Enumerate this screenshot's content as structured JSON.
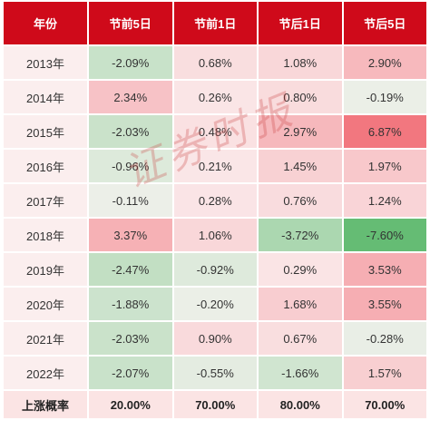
{
  "chart_data": {
    "type": "table",
    "headers": [
      "年份",
      "节前5日",
      "节前1日",
      "节后1日",
      "节后5日"
    ],
    "rows": [
      {
        "year": "2013年",
        "values": [
          -2.09,
          0.68,
          1.08,
          2.9
        ],
        "labels": [
          "-2.09%",
          "0.68%",
          "1.08%",
          "2.90%"
        ]
      },
      {
        "year": "2014年",
        "values": [
          2.34,
          0.26,
          0.8,
          -0.19
        ],
        "labels": [
          "2.34%",
          "0.26%",
          "0.80%",
          "-0.19%"
        ]
      },
      {
        "year": "2015年",
        "values": [
          -2.03,
          0.48,
          2.97,
          6.87
        ],
        "labels": [
          "-2.03%",
          "0.48%",
          "2.97%",
          "6.87%"
        ]
      },
      {
        "year": "2016年",
        "values": [
          -0.96,
          0.21,
          1.45,
          1.97
        ],
        "labels": [
          "-0.96%",
          "0.21%",
          "1.45%",
          "1.97%"
        ]
      },
      {
        "year": "2017年",
        "values": [
          -0.11,
          0.28,
          0.76,
          1.24
        ],
        "labels": [
          "-0.11%",
          "0.28%",
          "0.76%",
          "1.24%"
        ]
      },
      {
        "year": "2018年",
        "values": [
          3.37,
          1.06,
          -3.72,
          -7.6
        ],
        "labels": [
          "3.37%",
          "1.06%",
          "-3.72%",
          "-7.60%"
        ]
      },
      {
        "year": "2019年",
        "values": [
          -2.47,
          -0.92,
          0.29,
          3.53
        ],
        "labels": [
          "-2.47%",
          "-0.92%",
          "0.29%",
          "3.53%"
        ]
      },
      {
        "year": "2020年",
        "values": [
          -1.88,
          -0.2,
          1.68,
          3.55
        ],
        "labels": [
          "-1.88%",
          "-0.20%",
          "1.68%",
          "3.55%"
        ]
      },
      {
        "year": "2021年",
        "values": [
          -2.03,
          0.9,
          0.67,
          -0.28
        ],
        "labels": [
          "-2.03%",
          "0.90%",
          "0.67%",
          "-0.28%"
        ]
      },
      {
        "year": "2022年",
        "values": [
          -2.07,
          -0.55,
          -1.66,
          1.57
        ],
        "labels": [
          "-2.07%",
          "-0.55%",
          "-1.66%",
          "1.57%"
        ]
      }
    ],
    "summary": {
      "label": "上涨概率",
      "values": [
        "20.00%",
        "70.00%",
        "80.00%",
        "70.00%"
      ]
    },
    "colors": {
      "header": "#cf0a1a",
      "positive": "#f0606a",
      "negative": "#5ab86a",
      "neutral": "#fbeeee"
    }
  },
  "watermark": "证券时报"
}
